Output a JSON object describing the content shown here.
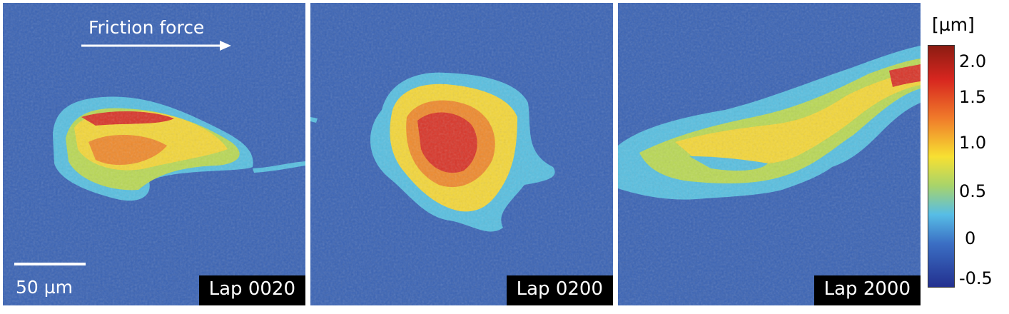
{
  "panels": [
    {
      "label": "Lap 0020"
    },
    {
      "label": "Lap 0200"
    },
    {
      "label": "Lap 2000"
    }
  ],
  "annotations": {
    "friction_label": "Friction force",
    "scale_label": "50 µm"
  },
  "colorbar": {
    "unit": "[µm]",
    "ticks": [
      "2.0",
      "1.5",
      "1.0",
      "0.5",
      "0",
      "-0.5"
    ],
    "colors": [
      "#8b1c12",
      "#d7261f",
      "#f07a2a",
      "#f7e032",
      "#a8d46a",
      "#57bde6",
      "#3b6fc4",
      "#23308f"
    ]
  },
  "background_color": "#3a63b4"
}
